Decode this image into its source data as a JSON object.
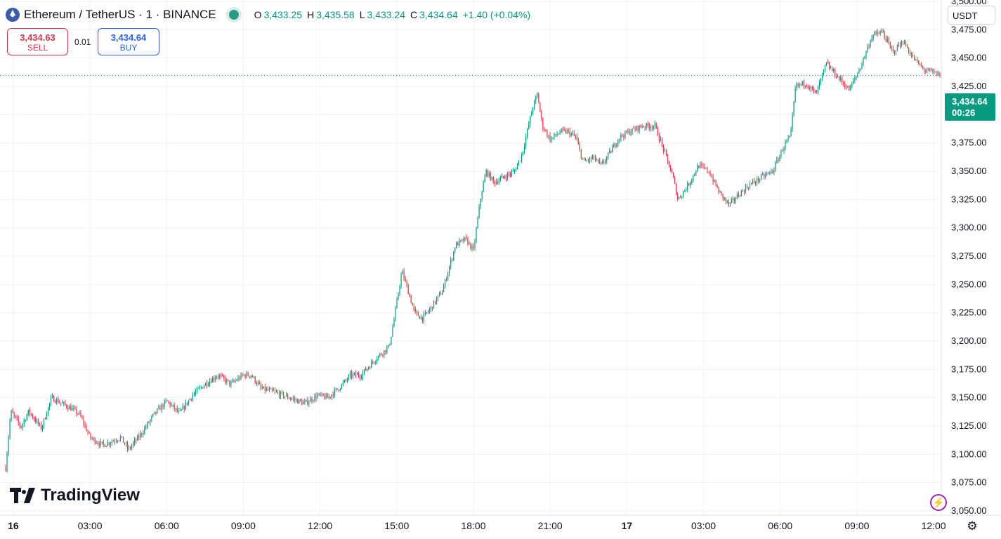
{
  "header": {
    "symbol_text": "Ethereum / TetherUS · 1 · BINANCE",
    "coin_icon": "ethereum-icon",
    "status_icon": "market-open-dot",
    "ohlc": {
      "o_label": "O",
      "o_value": "3,433.25",
      "h_label": "H",
      "h_value": "3,435.58",
      "l_label": "L",
      "l_value": "3,433.24",
      "c_label": "C",
      "c_value": "3,434.64",
      "change": "+1.40 (+0.04%)"
    }
  },
  "trade": {
    "sell_price": "3,434.63",
    "sell_label": "SELL",
    "spread": "0.01",
    "buy_price": "3,434.64",
    "buy_label": "BUY"
  },
  "currency": "USDT",
  "last_price": {
    "price": "3,434.64",
    "countdown": "00:26"
  },
  "logo_text": "TradingView",
  "colors": {
    "up": "#089981",
    "down": "#f23645",
    "sell": "#d6394a",
    "buy": "#2962ff",
    "tag": "#089981",
    "grid": "#f0f3fa"
  },
  "chart_data": {
    "type": "line",
    "style": "candlestick",
    "interval": "1 minute",
    "ylim": [
      3050,
      3500
    ],
    "yticks": [
      3050,
      3075,
      3100,
      3125,
      3150,
      3175,
      3200,
      3225,
      3250,
      3275,
      3300,
      3325,
      3350,
      3375,
      3400,
      3425,
      3450,
      3475,
      3500
    ],
    "ytick_labels": [
      "3,050.00",
      "3,075.00",
      "3,100.00",
      "3,125.00",
      "3,150.00",
      "3,175.00",
      "3,200.00",
      "3,225.00",
      "3,250.00",
      "3,275.00",
      "3,300.00",
      "3,325.00",
      "3,350.00",
      "3,375.00",
      "3,400.00",
      "3,425.00",
      "3,450.00",
      "3,475.00",
      "3,500.00"
    ],
    "xlim_hours": [
      -0.3,
      36.3
    ],
    "xticks": [
      {
        "t": 0,
        "label": "16"
      },
      {
        "t": 3,
        "label": "03:00"
      },
      {
        "t": 6,
        "label": "06:00"
      },
      {
        "t": 9,
        "label": "09:00"
      },
      {
        "t": 12,
        "label": "12:00"
      },
      {
        "t": 15,
        "label": "15:00"
      },
      {
        "t": 18,
        "label": "18:00"
      },
      {
        "t": 21,
        "label": "21:00"
      },
      {
        "t": 24,
        "label": "17"
      },
      {
        "t": 27,
        "label": "03:00"
      },
      {
        "t": 30,
        "label": "06:00"
      },
      {
        "t": 33,
        "label": "09:00"
      },
      {
        "t": 36,
        "label": "12:00"
      }
    ],
    "last_price": 3434.64,
    "price_path": [
      [
        -0.3,
        3088
      ],
      [
        -0.1,
        3138
      ],
      [
        0.3,
        3124
      ],
      [
        0.6,
        3138
      ],
      [
        1.1,
        3123
      ],
      [
        1.5,
        3150
      ],
      [
        2.3,
        3140
      ],
      [
        2.6,
        3135
      ],
      [
        3.0,
        3115
      ],
      [
        3.5,
        3108
      ],
      [
        4.2,
        3115
      ],
      [
        4.5,
        3104
      ],
      [
        5.0,
        3118
      ],
      [
        5.5,
        3135
      ],
      [
        6.0,
        3147
      ],
      [
        6.5,
        3136
      ],
      [
        7.0,
        3152
      ],
      [
        7.5,
        3162
      ],
      [
        8.0,
        3170
      ],
      [
        8.5,
        3162
      ],
      [
        9.0,
        3170
      ],
      [
        9.3,
        3170
      ],
      [
        9.7,
        3158
      ],
      [
        10.2,
        3155
      ],
      [
        10.8,
        3150
      ],
      [
        11.4,
        3145
      ],
      [
        11.9,
        3152
      ],
      [
        12.3,
        3150
      ],
      [
        12.8,
        3160
      ],
      [
        13.2,
        3170
      ],
      [
        13.6,
        3170
      ],
      [
        14.2,
        3185
      ],
      [
        14.7,
        3195
      ],
      [
        14.9,
        3220
      ],
      [
        15.2,
        3262
      ],
      [
        15.5,
        3240
      ],
      [
        15.7,
        3225
      ],
      [
        16.0,
        3220
      ],
      [
        16.3,
        3228
      ],
      [
        16.8,
        3245
      ],
      [
        17.3,
        3285
      ],
      [
        17.7,
        3290
      ],
      [
        18.0,
        3280
      ],
      [
        18.3,
        3330
      ],
      [
        18.5,
        3350
      ],
      [
        18.8,
        3340
      ],
      [
        19.2,
        3345
      ],
      [
        19.6,
        3350
      ],
      [
        19.9,
        3365
      ],
      [
        20.3,
        3405
      ],
      [
        20.5,
        3418
      ],
      [
        20.7,
        3390
      ],
      [
        21.0,
        3378
      ],
      [
        21.4,
        3385
      ],
      [
        21.7,
        3385
      ],
      [
        22.0,
        3380
      ],
      [
        22.3,
        3358
      ],
      [
        22.7,
        3362
      ],
      [
        23.0,
        3355
      ],
      [
        23.3,
        3365
      ],
      [
        23.7,
        3380
      ],
      [
        24.1,
        3385
      ],
      [
        24.6,
        3390
      ],
      [
        25.1,
        3390
      ],
      [
        25.5,
        3365
      ],
      [
        25.8,
        3345
      ],
      [
        26.0,
        3325
      ],
      [
        26.4,
        3338
      ],
      [
        26.8,
        3355
      ],
      [
        27.2,
        3350
      ],
      [
        27.6,
        3332
      ],
      [
        28.0,
        3320
      ],
      [
        28.4,
        3330
      ],
      [
        28.8,
        3338
      ],
      [
        29.3,
        3345
      ],
      [
        29.7,
        3350
      ],
      [
        30.0,
        3365
      ],
      [
        30.2,
        3375
      ],
      [
        30.4,
        3380
      ],
      [
        30.6,
        3425
      ],
      [
        31.0,
        3428
      ],
      [
        31.4,
        3418
      ],
      [
        31.8,
        3445
      ],
      [
        32.3,
        3432
      ],
      [
        32.7,
        3422
      ],
      [
        33.1,
        3440
      ],
      [
        33.6,
        3470
      ],
      [
        34.0,
        3473
      ],
      [
        34.4,
        3455
      ],
      [
        34.8,
        3465
      ],
      [
        35.2,
        3450
      ],
      [
        35.6,
        3440
      ],
      [
        36.0,
        3437
      ],
      [
        36.3,
        3434.64
      ]
    ]
  }
}
